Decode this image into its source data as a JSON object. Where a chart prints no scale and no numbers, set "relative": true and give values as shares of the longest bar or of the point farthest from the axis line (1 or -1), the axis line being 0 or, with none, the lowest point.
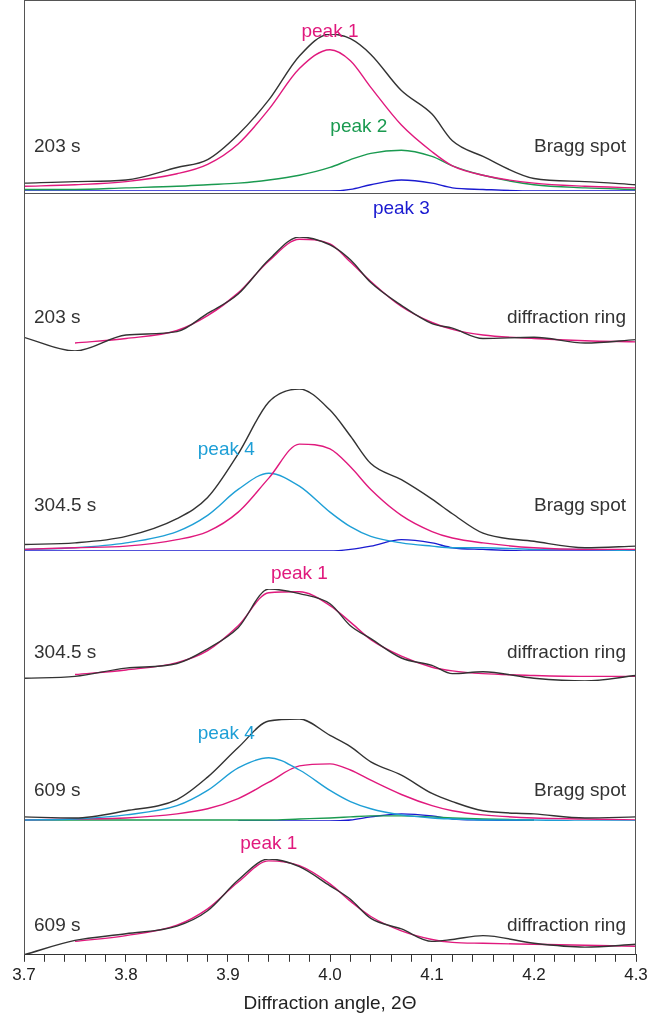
{
  "chart_data": [
    {
      "type": "line",
      "relative": true,
      "tick_labels": false,
      "xlim": [
        3.7,
        4.3
      ],
      "marker": "none",
      "annotations": [
        "203 s",
        "Bragg spot"
      ],
      "x": [
        3.7,
        3.75,
        3.8,
        3.85,
        3.88,
        3.91,
        3.94,
        3.97,
        4.0,
        4.02,
        4.04,
        4.07,
        4.1,
        4.12,
        4.15,
        4.2,
        4.25,
        4.3
      ],
      "series": [
        {
          "color": "#333333",
          "values": [
            0.05,
            0.06,
            0.07,
            0.15,
            0.2,
            0.36,
            0.58,
            0.86,
            1.0,
            0.97,
            0.87,
            0.64,
            0.49,
            0.32,
            0.22,
            0.08,
            0.06,
            0.04
          ]
        },
        {
          "name": "peak 1",
          "color": "#e0197d",
          "values": [
            0.03,
            0.04,
            0.06,
            0.11,
            0.17,
            0.3,
            0.52,
            0.78,
            0.9,
            0.83,
            0.66,
            0.42,
            0.25,
            0.16,
            0.1,
            0.05,
            0.03,
            0.02
          ]
        },
        {
          "name": "peak 2",
          "color": "#1a9a50",
          "values": [
            0.01,
            0.01,
            0.02,
            0.03,
            0.04,
            0.05,
            0.07,
            0.1,
            0.15,
            0.2,
            0.24,
            0.26,
            0.22,
            0.16,
            0.1,
            0.04,
            0.02,
            0.01
          ]
        },
        {
          "name": "peak 3",
          "color": "#1a1ad0",
          "values": [
            0,
            0,
            0,
            0,
            0,
            0,
            0,
            0,
            0,
            0.01,
            0.04,
            0.07,
            0.05,
            0.02,
            0.01,
            0,
            0,
            0
          ]
        }
      ]
    },
    {
      "type": "line",
      "relative": true,
      "tick_labels": false,
      "xlim": [
        3.7,
        4.3
      ],
      "marker": "none",
      "annotations": [
        "203 s",
        "diffraction ring"
      ],
      "x": [
        3.7,
        3.75,
        3.8,
        3.85,
        3.88,
        3.91,
        3.94,
        3.97,
        4.0,
        4.02,
        4.04,
        4.07,
        4.1,
        4.12,
        4.15,
        4.2,
        4.25,
        4.3
      ],
      "series": [
        {
          "color": "#333333",
          "values": [
            0.12,
            0.0,
            0.14,
            0.17,
            0.33,
            0.5,
            0.8,
            1.0,
            0.93,
            0.8,
            0.6,
            0.4,
            0.24,
            0.2,
            0.11,
            0.12,
            0.07,
            0.1
          ]
        },
        {
          "color": "#e0197d",
          "values": [
            null,
            0.07,
            0.11,
            0.18,
            0.31,
            0.51,
            0.79,
            0.98,
            0.94,
            0.78,
            0.61,
            0.39,
            0.25,
            0.19,
            0.14,
            0.11,
            0.09,
            0.08
          ]
        }
      ]
    },
    {
      "type": "line",
      "relative": true,
      "tick_labels": false,
      "xlim": [
        3.7,
        4.3
      ],
      "marker": "none",
      "annotations": [
        "304.5 s",
        "Bragg spot"
      ],
      "x": [
        3.7,
        3.75,
        3.8,
        3.85,
        3.88,
        3.91,
        3.94,
        3.97,
        4.0,
        4.02,
        4.04,
        4.07,
        4.1,
        4.12,
        4.15,
        4.2,
        4.25,
        4.3
      ],
      "series": [
        {
          "color": "#333333",
          "values": [
            0.04,
            0.05,
            0.09,
            0.2,
            0.33,
            0.6,
            0.92,
            1.0,
            0.87,
            0.71,
            0.54,
            0.44,
            0.32,
            0.23,
            0.11,
            0.06,
            0.02,
            0.03
          ]
        },
        {
          "color": "#e0197d",
          "values": [
            0.01,
            0.02,
            0.03,
            0.07,
            0.12,
            0.24,
            0.45,
            0.66,
            0.63,
            0.52,
            0.38,
            0.22,
            0.12,
            0.08,
            0.05,
            0.02,
            0.01,
            0.01
          ]
        },
        {
          "name": "peak 4",
          "color": "#1e9fd6",
          "values": [
            0.01,
            0.02,
            0.05,
            0.12,
            0.22,
            0.38,
            0.48,
            0.4,
            0.24,
            0.15,
            0.09,
            0.05,
            0.03,
            0.02,
            0.02,
            0.01,
            0.01,
            0
          ]
        },
        {
          "color": "#1a1ad0",
          "values": [
            0,
            0,
            0,
            0,
            0,
            0,
            0,
            0,
            0,
            0.01,
            0.03,
            0.07,
            0.05,
            0.02,
            0.01,
            0,
            0,
            0
          ]
        }
      ]
    },
    {
      "type": "line",
      "relative": true,
      "tick_labels": false,
      "xlim": [
        3.7,
        4.3
      ],
      "marker": "none",
      "annotations": [
        "304.5 s",
        "diffraction ring"
      ],
      "x": [
        3.7,
        3.75,
        3.8,
        3.85,
        3.88,
        3.91,
        3.94,
        3.97,
        4.0,
        4.02,
        4.04,
        4.07,
        4.1,
        4.12,
        4.15,
        4.2,
        4.25,
        4.3
      ],
      "series": [
        {
          "color": "#333333",
          "values": [
            0.03,
            0.05,
            0.14,
            0.19,
            0.35,
            0.58,
            1.0,
            0.95,
            0.84,
            0.6,
            0.46,
            0.25,
            0.17,
            0.08,
            0.1,
            0.03,
            0.0,
            0.06
          ]
        },
        {
          "name": "peak 1",
          "color": "#e0197d",
          "values": [
            null,
            0.07,
            0.12,
            0.2,
            0.33,
            0.6,
            0.96,
            0.97,
            0.82,
            0.64,
            0.45,
            0.27,
            0.15,
            0.11,
            0.08,
            0.06,
            0.05,
            0.05
          ]
        }
      ]
    },
    {
      "type": "line",
      "relative": true,
      "tick_labels": false,
      "xlim": [
        3.7,
        4.3
      ],
      "marker": "none",
      "annotations": [
        "609 s",
        "Bragg spot"
      ],
      "x": [
        3.7,
        3.75,
        3.8,
        3.85,
        3.88,
        3.91,
        3.94,
        3.97,
        4.0,
        4.02,
        4.04,
        4.07,
        4.1,
        4.12,
        4.15,
        4.2,
        4.25,
        4.3
      ],
      "series": [
        {
          "color": "#333333",
          "values": [
            0.04,
            0.03,
            0.1,
            0.21,
            0.43,
            0.72,
            0.98,
            1.0,
            0.84,
            0.73,
            0.58,
            0.45,
            0.27,
            0.19,
            0.1,
            0.07,
            0.03,
            0.04
          ]
        },
        {
          "name": "peak 4",
          "color": "#1e9fd6",
          "values": [
            0.01,
            0.02,
            0.06,
            0.15,
            0.3,
            0.52,
            0.62,
            0.5,
            0.3,
            0.19,
            0.12,
            0.06,
            0.03,
            0.02,
            0.01,
            0.01,
            0,
            0
          ]
        },
        {
          "color": "#e0197d",
          "values": [
            0.01,
            0.02,
            0.03,
            0.07,
            0.12,
            0.22,
            0.38,
            0.54,
            0.56,
            0.5,
            0.4,
            0.26,
            0.15,
            0.1,
            0.06,
            0.03,
            0.02,
            0.01
          ]
        },
        {
          "color": "#1a9a50",
          "values": [
            0.01,
            0.01,
            0.01,
            0.01,
            0.01,
            0.01,
            0.01,
            0.02,
            0.03,
            0.04,
            0.05,
            0.05,
            0.04,
            0.03,
            0.02,
            0.01,
            null,
            null
          ]
        },
        {
          "color": "#1a1ad0",
          "values": [
            null,
            null,
            null,
            null,
            null,
            0,
            0,
            0,
            0,
            0.01,
            0.04,
            0.07,
            0.05,
            0.02,
            0.01,
            0,
            null,
            null
          ]
        }
      ]
    },
    {
      "type": "line",
      "relative": true,
      "tick_labels": "x",
      "xlim": [
        3.7,
        4.3
      ],
      "marker": "none",
      "annotations": [
        "609 s",
        "diffraction ring"
      ],
      "xlabel": "Diffraction angle, 2Θ",
      "xticks": [
        3.7,
        {
          "value": 3.72,
          "label": null
        },
        {
          "value": 3.74,
          "label": null
        },
        {
          "value": 3.76,
          "label": null
        },
        {
          "value": 3.78,
          "label": null
        },
        3.8,
        {
          "value": 3.82,
          "label": null
        },
        {
          "value": 3.84,
          "label": null
        },
        {
          "value": 3.86,
          "label": null
        },
        {
          "value": 3.88,
          "label": null
        },
        3.9,
        {
          "value": 3.92,
          "label": null
        },
        {
          "value": 3.94,
          "label": null
        },
        {
          "value": 3.96,
          "label": null
        },
        {
          "value": 3.98,
          "label": null
        },
        {
          "value": 4.0,
          "label": "4.0"
        },
        {
          "value": 4.02,
          "label": null
        },
        {
          "value": 4.04,
          "label": null
        },
        {
          "value": 4.06,
          "label": null
        },
        {
          "value": 4.08,
          "label": null
        },
        4.1,
        {
          "value": 4.12,
          "label": null
        },
        {
          "value": 4.14,
          "label": null
        },
        {
          "value": 4.16,
          "label": null
        },
        {
          "value": 4.18,
          "label": null
        },
        4.2,
        {
          "value": 4.22,
          "label": null
        },
        {
          "value": 4.24,
          "label": null
        },
        {
          "value": 4.26,
          "label": null
        },
        {
          "value": 4.28,
          "label": null
        },
        4.3
      ],
      "x": [
        3.7,
        3.75,
        3.8,
        3.85,
        3.88,
        3.91,
        3.94,
        3.97,
        4.0,
        4.02,
        4.04,
        4.07,
        4.1,
        4.12,
        4.15,
        4.2,
        4.25,
        4.3
      ],
      "series": [
        {
          "color": "#333333",
          "values": [
            0.0,
            0.15,
            0.22,
            0.3,
            0.46,
            0.78,
            1.0,
            0.92,
            0.72,
            0.58,
            0.38,
            0.27,
            0.14,
            0.16,
            0.2,
            0.12,
            0.08,
            0.11
          ]
        },
        {
          "name": "peak 1",
          "color": "#e0197d",
          "values": [
            null,
            0.14,
            0.2,
            0.31,
            0.48,
            0.76,
            0.98,
            0.93,
            0.74,
            0.56,
            0.4,
            0.25,
            0.16,
            0.13,
            0.12,
            0.11,
            0.1,
            0.09
          ]
        }
      ]
    }
  ]
}
